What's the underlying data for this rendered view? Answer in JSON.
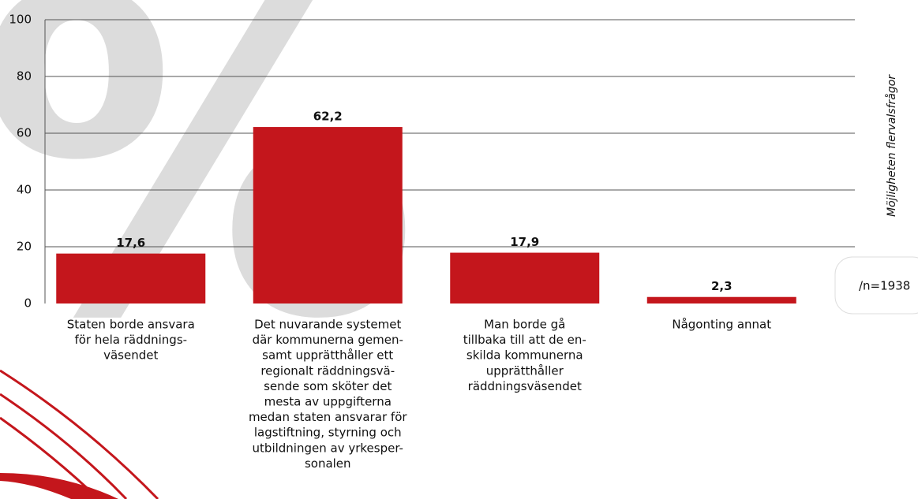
{
  "chart_data": {
    "type": "bar",
    "categories": [
      [
        "Staten borde ansvara",
        "för hela räddnings-",
        "väsendet"
      ],
      [
        "Det nuvarande systemet",
        "där kommunerna gemen-",
        "samt upprätthåller ett",
        "regionalt räddningsvä-",
        "sende som sköter det",
        "mesta av uppgifterna",
        "medan staten ansvarar för",
        "lagstiftning, styrning och",
        "utbildningen av yrkesper-",
        "sonalen"
      ],
      [
        "Man borde gå",
        "tillbaka till att de en-",
        "skilda kommunerna",
        "upprätthåller",
        "räddningsväsendet"
      ],
      [
        "Någonting annat"
      ]
    ],
    "values": [
      17.6,
      62.2,
      17.9,
      2.3
    ],
    "value_labels": [
      "17,6",
      "62,2",
      "17,9",
      "2,3"
    ],
    "color": "#c4161c",
    "ylim": [
      0,
      100
    ],
    "yticks": [
      0,
      20,
      40,
      60,
      80,
      100
    ],
    "grid": true,
    "side_label": "Möjligheten flervalsfrågor",
    "sample_size": "/n=1938"
  }
}
